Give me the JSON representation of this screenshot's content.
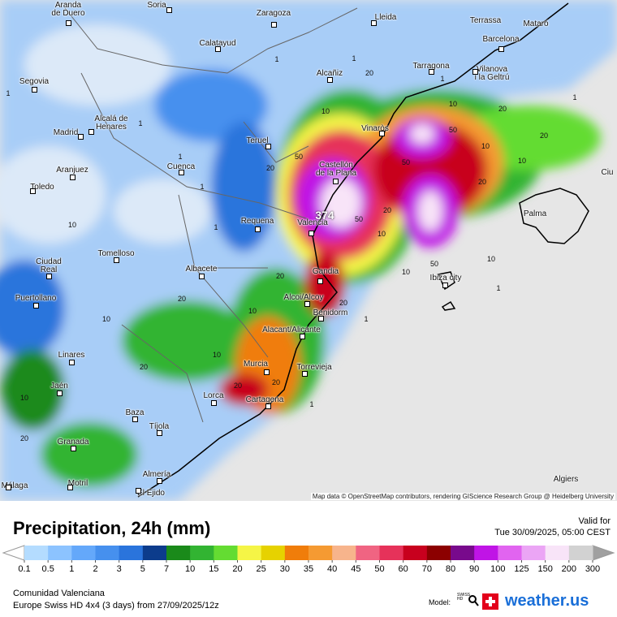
{
  "map": {
    "cities": [
      "Aranda\nde Duero",
      "Soria",
      "Zaragoza",
      "Lleida",
      "Terrassa",
      "Mataró",
      "Barcelona",
      "Calatayud",
      "Segovia",
      "Alcañiz",
      "Tarragona",
      "Vilanova\ni la Geltrú",
      "Madrid",
      "Alcalá de\nHenares",
      "Teruel",
      "Vinaròs",
      "Castellón\nde la Plana",
      "Aranjuez",
      "Cuenca",
      "Toledo",
      "Valencia",
      "Requena",
      "Palma",
      "Ciudad\nReal",
      "Tomelloso",
      "Albacete",
      "Gandia",
      "Ibiza city",
      "Puertollano",
      "Alcoi/Alcoy",
      "Benidorm",
      "Alacant/Alicante",
      "Linares",
      "Murcia",
      "Torrevieja",
      "Jaén",
      "Lorca",
      "Cartagena",
      "Baza",
      "Tíjola",
      "Granada",
      "Almería",
      "Motril",
      "El Ejido",
      "Málaga",
      "Algiers",
      "Ciu"
    ],
    "labels": [
      374,
      50,
      50,
      50,
      50,
      50,
      20,
      20,
      20,
      20,
      20,
      20,
      20,
      20,
      20,
      20,
      20,
      20,
      20,
      10,
      10,
      10,
      10,
      10,
      10,
      10,
      10,
      10,
      10,
      10,
      10,
      1,
      1,
      1,
      1,
      1,
      1,
      1,
      1,
      1,
      1,
      1,
      1
    ],
    "attribution": "Map data © OpenStreetMap contributors, rendering GIScience Research Group @ Heidelberg University"
  },
  "header": {
    "title": "Precipitation, 24h (mm)",
    "valid_label": "Valid for",
    "valid_time": "Tue 30/09/2025, 05:00 CEST"
  },
  "legend": {
    "ticks": [
      0.1,
      0.5,
      1,
      2,
      3,
      5,
      7,
      10,
      15,
      20,
      25,
      30,
      35,
      40,
      45,
      50,
      60,
      70,
      80,
      90,
      100,
      125,
      150,
      200,
      300
    ],
    "colors": [
      "#b4dcff",
      "#8cc3ff",
      "#64a8fa",
      "#4690ee",
      "#2a74dc",
      "#0c3c8c",
      "#1a8a1a",
      "#32b432",
      "#64dc32",
      "#f5f546",
      "#e6d200",
      "#f07d0a",
      "#f59a32",
      "#f7b48c",
      "#f06482",
      "#e6325a",
      "#c8001e",
      "#8c0000",
      "#780a8c",
      "#c014e6",
      "#e164f0",
      "#eba5f5",
      "#f8e4f8",
      "#d2d2d2"
    ],
    "below_color": "#ffffff",
    "above_color": "#a0a0a0"
  },
  "footer": {
    "region": "Comunidad Valenciana",
    "model_run": "Europe Swiss HD 4x4 (3 days) from 27/09/2025/12z",
    "model_label": "Model:",
    "swiss_hd": "SWISS HD",
    "brand": "weather.us"
  }
}
